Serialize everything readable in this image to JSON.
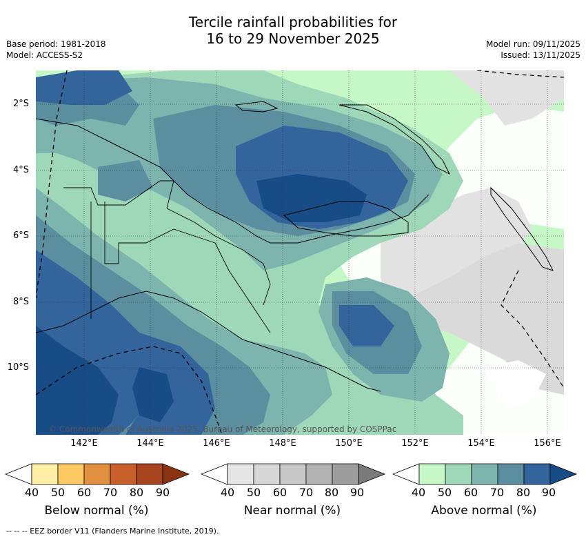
{
  "title_line1": "Tercile rainfall probabilities for",
  "title_line2": "16 to 29 November 2025",
  "base_period": "Base period: 1981-2018",
  "model": "Model: ACCESS-S2",
  "model_run": "Model run: 09/11/2025",
  "issued": "Issued: 13/11/2025",
  "copyright": "© Commonwealth of Australia 2025, Bureau of Meteorology, supported by COSPPac",
  "lat_labels": [
    "2°S",
    "4°S",
    "6°S",
    "8°S",
    "10°S"
  ],
  "lon_labels": [
    "142°E",
    "144°E",
    "146°E",
    "148°E",
    "150°E",
    "152°E",
    "154°E",
    "156°E"
  ],
  "colorbars": [
    {
      "title": "Below normal (%)",
      "ticks": [
        "40",
        "50",
        "60",
        "70",
        "80",
        "90"
      ],
      "colors": [
        "#fff0a8",
        "#fdc962",
        "#e1903f",
        "#c95f2b",
        "#a8441e",
        "#8a3311"
      ]
    },
    {
      "title": "Near normal (%)",
      "ticks": [
        "40",
        "50",
        "60",
        "70",
        "80",
        "90"
      ],
      "colors": [
        "#e6e6e6",
        "#d7d7d7",
        "#c8c8c8",
        "#b3b3b3",
        "#9d9d9d",
        "#7a7a7a"
      ]
    },
    {
      "title": "Above normal (%)",
      "ticks": [
        "40",
        "50",
        "60",
        "70",
        "80",
        "90"
      ],
      "colors": [
        "#c6f7c7",
        "#9fd8b8",
        "#7db4ad",
        "#5b8fa0",
        "#33649b",
        "#184c86"
      ]
    }
  ],
  "footer": "--  --  -- EEZ border V11 (Flanders Marine Institute, 2019)."
}
